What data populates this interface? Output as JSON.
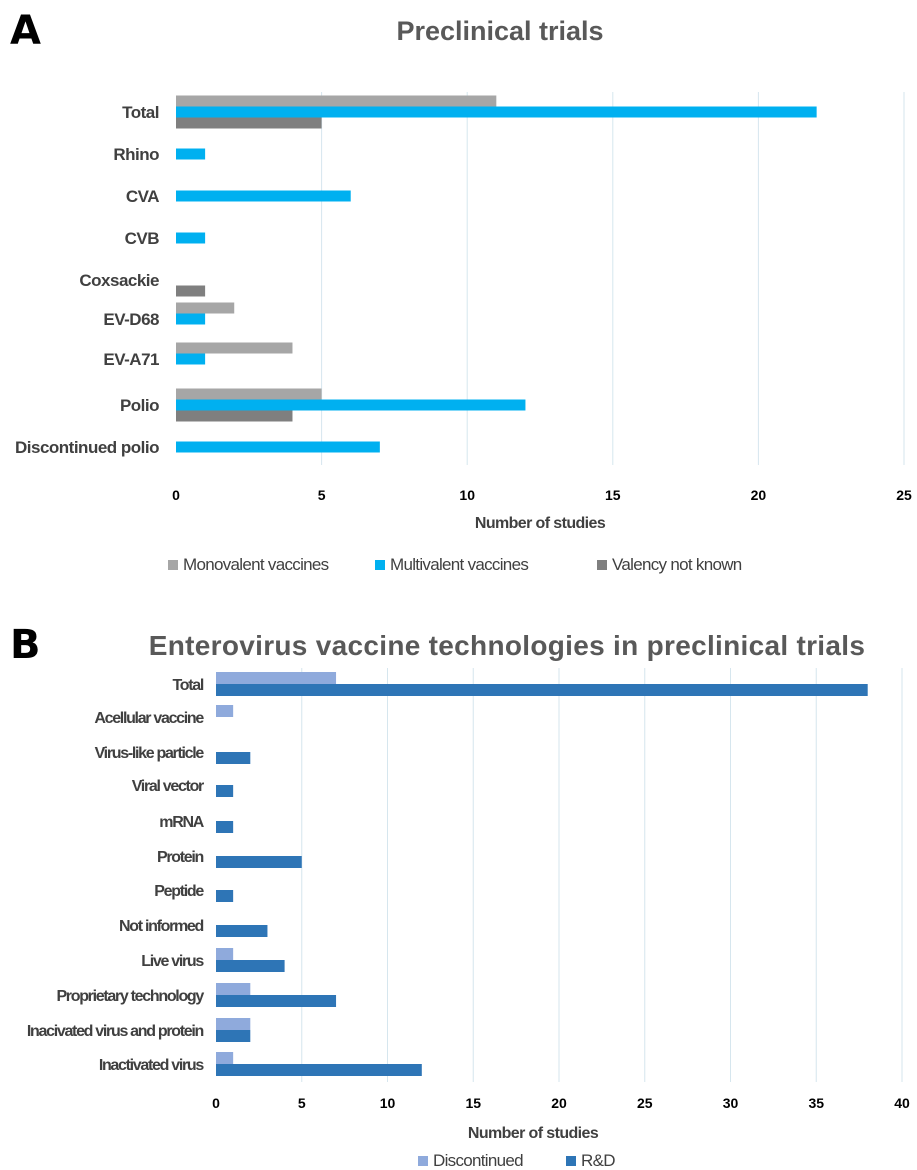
{
  "chart_data": [
    {
      "panel": "A",
      "type": "bar",
      "orientation": "horizontal",
      "title": "Preclinical trials",
      "xlabel": "Number of studies",
      "ylabel": "",
      "xlim": [
        0,
        25
      ],
      "xticks": [
        0,
        5,
        10,
        15,
        20,
        25
      ],
      "grid": true,
      "legend_position": "bottom",
      "categories": [
        "Total",
        "Rhino",
        "CVA",
        "CVB",
        "Coxsackie",
        "EV-D68",
        "EV-A71",
        "Polio",
        "Discontinued polio"
      ],
      "series": [
        {
          "name": "Monovalent vaccines",
          "color": "#a6a6a6",
          "values": [
            11,
            0,
            0,
            0,
            0,
            2,
            4,
            5,
            0
          ]
        },
        {
          "name": "Multivalent vaccines",
          "color": "#00b0f0",
          "values": [
            22,
            1,
            6,
            1,
            0,
            1,
            1,
            12,
            7
          ]
        },
        {
          "name": "Valency not known",
          "color": "#7f7f7f",
          "values": [
            5,
            0,
            0,
            0,
            1,
            0,
            0,
            4,
            0
          ]
        }
      ]
    },
    {
      "panel": "B",
      "type": "bar",
      "orientation": "horizontal",
      "title": "Enterovirus vaccine technologies in preclinical trials",
      "xlabel": "Number of studies",
      "ylabel": "",
      "xlim": [
        0,
        40
      ],
      "xticks": [
        0,
        5,
        10,
        15,
        20,
        25,
        30,
        35,
        40
      ],
      "grid": true,
      "legend_position": "bottom",
      "categories": [
        "Total",
        "Acellular vaccine",
        "Virus-like particle",
        "Viral vector",
        "mRNA",
        "Protein",
        "Peptide",
        "Not informed",
        "Live virus",
        "Proprietary technology",
        "Inacivated virus and protein",
        "Inactivated virus"
      ],
      "series": [
        {
          "name": "Discontinued",
          "color": "#8faadc",
          "values": [
            7,
            1,
            0,
            0,
            0,
            0,
            0,
            0,
            1,
            2,
            2,
            1
          ]
        },
        {
          "name": "R&D",
          "color": "#2e75b6",
          "values": [
            38,
            0,
            2,
            1,
            1,
            5,
            1,
            3,
            4,
            7,
            2,
            12
          ]
        }
      ]
    }
  ]
}
